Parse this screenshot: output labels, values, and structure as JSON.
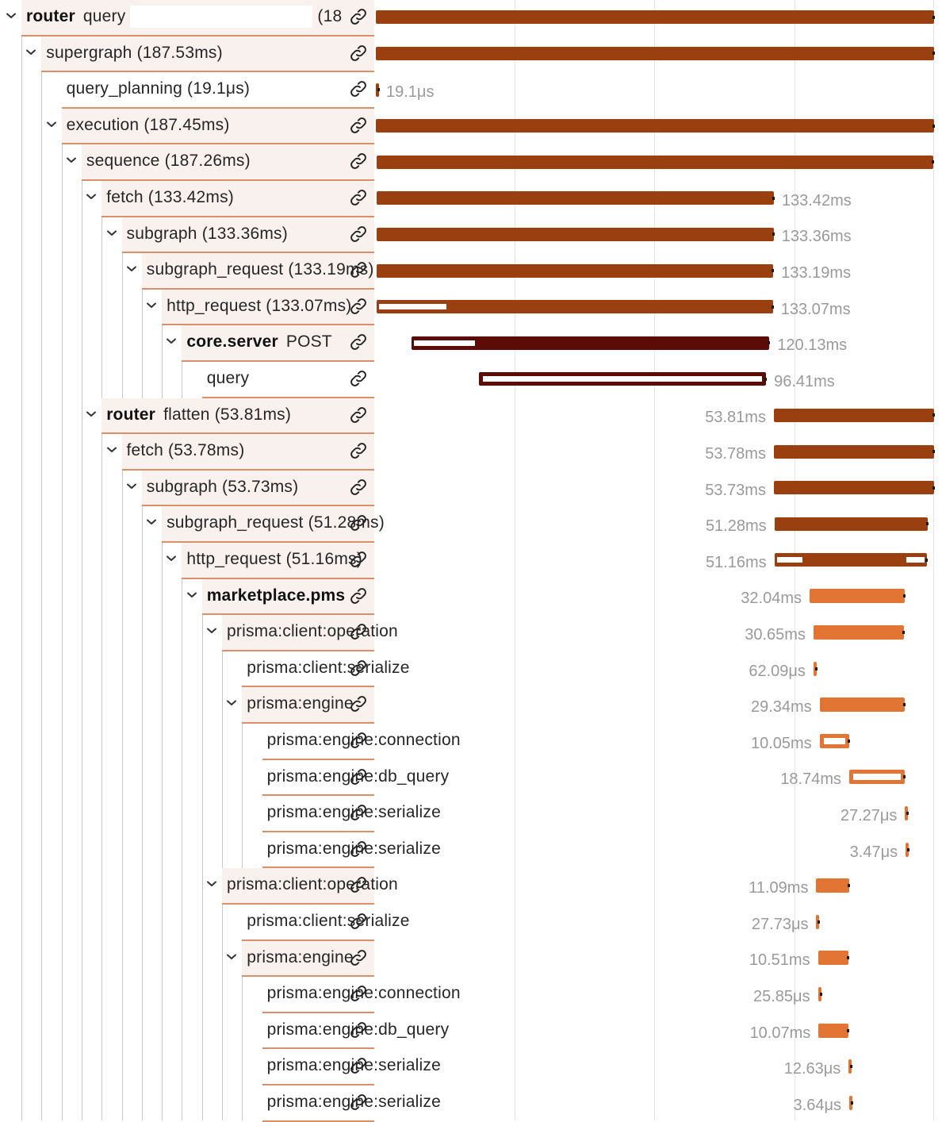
{
  "rows": [
    {
      "service": "router",
      "name": "query",
      "suffix": "(18",
      "depth": 0,
      "expand": true,
      "query_box": "wide",
      "bar_start": 0.0,
      "bar_end": 1.0,
      "color": "dark-orange",
      "duration": ""
    },
    {
      "service": "",
      "name": "supergraph (187.53ms)",
      "suffix": "",
      "depth": 1,
      "expand": true,
      "bar_start": 0.0,
      "bar_end": 1.0,
      "color": "dark-orange",
      "duration": ""
    },
    {
      "service": "",
      "name": "query_planning (19.1μs)",
      "suffix": "",
      "depth": 2,
      "expand": false,
      "bar_start": 0.0,
      "bar_end": 0.0001,
      "color": "dark-orange",
      "duration": "19.1μs"
    },
    {
      "service": "",
      "name": "execution (187.45ms)",
      "suffix": "",
      "depth": 2,
      "expand": true,
      "bar_start": 0.0004,
      "bar_end": 1.0,
      "color": "dark-orange",
      "duration": ""
    },
    {
      "service": "",
      "name": "sequence (187.26ms)",
      "suffix": "",
      "depth": 3,
      "expand": true,
      "bar_start": 0.0014,
      "bar_end": 0.9985,
      "color": "dark-orange",
      "duration": ""
    },
    {
      "service": "",
      "name": "fetch (133.42ms)",
      "suffix": "",
      "depth": 4,
      "expand": true,
      "bar_start": 0.0014,
      "bar_end": 0.713,
      "color": "dark-orange",
      "duration": "133.42ms"
    },
    {
      "service": "",
      "name": "subgraph (133.36ms)",
      "suffix": "",
      "depth": 5,
      "expand": true,
      "bar_start": 0.0015,
      "bar_end": 0.7128,
      "color": "dark-orange",
      "duration": "133.36ms"
    },
    {
      "service": "",
      "name": "subgraph_request (133.19ms)",
      "suffix": "",
      "depth": 6,
      "expand": true,
      "bar_start": 0.0017,
      "bar_end": 0.712,
      "color": "dark-orange",
      "duration": "133.19ms"
    },
    {
      "service": "",
      "name": "http_request (133.07ms)",
      "suffix": "",
      "depth": 7,
      "expand": true,
      "bar_start": 0.0018,
      "bar_end": 0.7113,
      "color": "dark-orange",
      "duration": "133.07ms"
    },
    {
      "service": "core.server",
      "name": "POST",
      "suffix": "",
      "depth": 8,
      "expand": true,
      "bar_start": 0.064,
      "bar_end": 0.705,
      "color": "maroon",
      "duration": "120.13ms"
    },
    {
      "service": "",
      "name": "query",
      "suffix": "",
      "depth": 9,
      "expand": false,
      "query_box": "small",
      "bar_start": 0.185,
      "bar_end": 0.699,
      "color": "maroon-outline",
      "duration": "96.41ms"
    },
    {
      "service": "router",
      "name": "flatten (53.81ms)",
      "suffix": "",
      "depth": 4,
      "expand": true,
      "bar_start": 0.713,
      "bar_end": 1.0,
      "color": "dark-orange",
      "duration": "53.81ms"
    },
    {
      "service": "",
      "name": "fetch (53.78ms)",
      "suffix": "",
      "depth": 5,
      "expand": true,
      "bar_start": 0.713,
      "bar_end": 1.0,
      "color": "dark-orange",
      "duration": "53.78ms"
    },
    {
      "service": "",
      "name": "subgraph (53.73ms)",
      "suffix": "",
      "depth": 6,
      "expand": true,
      "bar_start": 0.713,
      "bar_end": 0.9995,
      "color": "dark-orange",
      "duration": "53.73ms"
    },
    {
      "service": "",
      "name": "subgraph_request (51.28ms)",
      "suffix": "",
      "depth": 7,
      "expand": true,
      "bar_start": 0.714,
      "bar_end": 0.988,
      "color": "dark-orange",
      "duration": "51.28ms"
    },
    {
      "service": "",
      "name": "http_request (51.16ms)",
      "suffix": "",
      "depth": 8,
      "expand": true,
      "bar_start": 0.714,
      "bar_end": 0.987,
      "color": "dark-orange",
      "duration": "51.16ms"
    },
    {
      "service": "marketplace.pms",
      "name": "",
      "suffix": "",
      "depth": 9,
      "expand": true,
      "bar_start": 0.777,
      "bar_end": 0.948,
      "color": "orange",
      "duration": "32.04ms"
    },
    {
      "service": "",
      "name": "prisma:client:operation",
      "suffix": "",
      "depth": 10,
      "expand": true,
      "bar_start": 0.784,
      "bar_end": 0.946,
      "color": "orange",
      "duration": "30.65ms"
    },
    {
      "service": "",
      "name": "prisma:client:serialize",
      "suffix": "",
      "depth": 11,
      "expand": false,
      "bar_start": 0.784,
      "bar_end": 0.7843,
      "color": "orange",
      "duration": "62.09μs"
    },
    {
      "service": "",
      "name": "prisma:engine",
      "suffix": "",
      "depth": 11,
      "expand": true,
      "bar_start": 0.795,
      "bar_end": 0.948,
      "color": "orange",
      "duration": "29.34ms"
    },
    {
      "service": "",
      "name": "prisma:engine:connection",
      "suffix": "",
      "depth": 12,
      "expand": false,
      "bar_start": 0.795,
      "bar_end": 0.848,
      "color": "orange-outline",
      "duration": "10.05ms"
    },
    {
      "service": "",
      "name": "prisma:engine:db_query",
      "suffix": "",
      "depth": 12,
      "expand": false,
      "bar_start": 0.848,
      "bar_end": 0.948,
      "color": "orange-outline",
      "duration": "18.74ms"
    },
    {
      "service": "",
      "name": "prisma:engine:serialize",
      "suffix": "",
      "depth": 12,
      "expand": false,
      "bar_start": 0.948,
      "bar_end": 0.9482,
      "color": "orange",
      "duration": "27.27μs"
    },
    {
      "service": "",
      "name": "prisma:engine:serialize",
      "suffix": "",
      "depth": 12,
      "expand": false,
      "bar_start": 0.949,
      "bar_end": 0.9491,
      "color": "orange",
      "duration": "3.47μs"
    },
    {
      "service": "",
      "name": "prisma:client:operation",
      "suffix": "",
      "depth": 10,
      "expand": true,
      "bar_start": 0.789,
      "bar_end": 0.848,
      "color": "orange",
      "duration": "11.09ms"
    },
    {
      "service": "",
      "name": "prisma:client:serialize",
      "suffix": "",
      "depth": 11,
      "expand": false,
      "bar_start": 0.789,
      "bar_end": 0.7891,
      "color": "orange",
      "duration": "27.73μs"
    },
    {
      "service": "",
      "name": "prisma:engine",
      "suffix": "",
      "depth": 11,
      "expand": true,
      "bar_start": 0.792,
      "bar_end": 0.847,
      "color": "orange",
      "duration": "10.51ms"
    },
    {
      "service": "",
      "name": "prisma:engine:connection",
      "suffix": "",
      "depth": 12,
      "expand": false,
      "bar_start": 0.792,
      "bar_end": 0.7921,
      "color": "orange",
      "duration": "25.85μs"
    },
    {
      "service": "",
      "name": "prisma:engine:db_query",
      "suffix": "",
      "depth": 12,
      "expand": false,
      "bar_start": 0.793,
      "bar_end": 0.847,
      "color": "orange",
      "duration": "10.07ms"
    },
    {
      "service": "",
      "name": "prisma:engine:serialize",
      "suffix": "",
      "depth": 12,
      "expand": false,
      "bar_start": 0.847,
      "bar_end": 0.8471,
      "color": "orange",
      "duration": "12.63μs"
    },
    {
      "service": "",
      "name": "prisma:engine:serialize",
      "suffix": "",
      "depth": 12,
      "expand": false,
      "bar_start": 0.848,
      "bar_end": 0.8481,
      "color": "orange",
      "duration": "3.64μs"
    }
  ],
  "icons": {
    "expand": "chevron-down-icon",
    "link": "link-icon"
  },
  "colors": {
    "dark-orange": "#9a3f0f",
    "maroon": "#5c0b07",
    "orange": "#e27434",
    "row_bg": "#f9f1ee",
    "row_border": "#d9906a"
  }
}
